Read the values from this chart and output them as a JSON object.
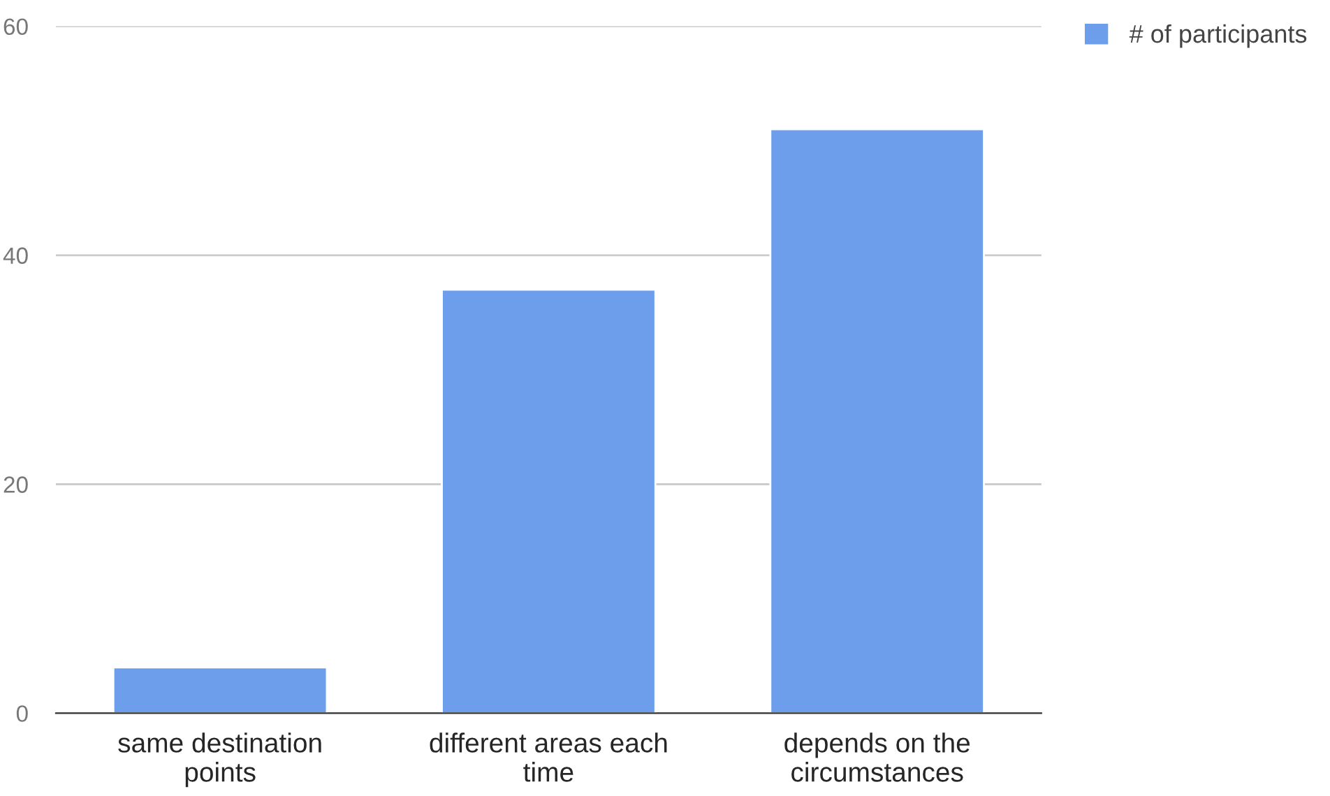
{
  "chart_data": {
    "type": "bar",
    "categories": [
      "same destination points",
      "different areas each time",
      "depends on the circumstances"
    ],
    "series": [
      {
        "name": "# of participants",
        "color": "#6d9eeb",
        "values": [
          4,
          37,
          51
        ]
      }
    ],
    "ylim": [
      0,
      60
    ],
    "yticks": [
      0,
      20,
      40,
      60
    ],
    "grid": "y",
    "legend": "top right"
  }
}
